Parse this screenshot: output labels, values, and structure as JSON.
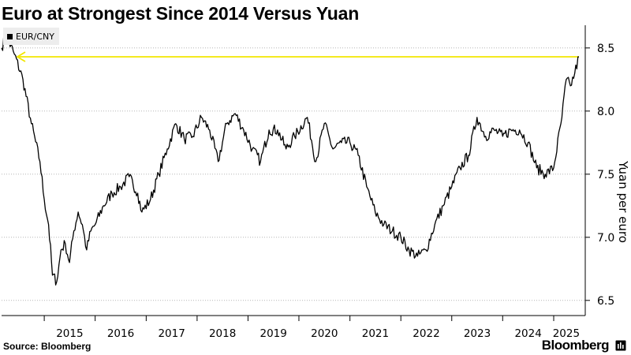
{
  "title": "Euro at Strongest Since 2014 Versus Yuan",
  "legend": {
    "label": "EUR/CNY",
    "color": "#000000"
  },
  "source": "Source: Bloomberg",
  "brand": "Bloomberg",
  "colors": {
    "line": "#000000",
    "reference": "#f2e600",
    "grid": "#b5b5b5"
  },
  "chart_data": {
    "type": "line",
    "title": "Euro at Strongest Since 2014 Versus Yuan",
    "xlabel": "",
    "ylabel": "Yuan per euro",
    "ylim": [
      6.38,
      8.68
    ],
    "yaxis_side": "right",
    "yticks": [
      6.5,
      7.0,
      7.5,
      8.0,
      8.5
    ],
    "ytick_labels": [
      "6.5",
      "7.0",
      "7.5",
      "8.0",
      "8.5"
    ],
    "xticks": [
      "2015",
      "2016",
      "2017",
      "2018",
      "2019",
      "2020",
      "2021",
      "2022",
      "2023",
      "2024",
      "2025"
    ],
    "grid": "horizontal dotted",
    "legend_position": "top-left",
    "reference_line": {
      "value": 8.43,
      "style": "arrow pointing left",
      "color": "#f2e600"
    },
    "series": [
      {
        "name": "EUR/CNY",
        "points": [
          [
            "2014-03-01",
            8.5
          ],
          [
            "2014-04-01",
            8.6
          ],
          [
            "2014-06-01",
            8.45
          ],
          [
            "2014-08-01",
            8.25
          ],
          [
            "2014-10-01",
            7.9
          ],
          [
            "2014-12-01",
            7.6
          ],
          [
            "2015-01-01",
            7.3
          ],
          [
            "2015-02-01",
            7.1
          ],
          [
            "2015-03-01",
            6.7
          ],
          [
            "2015-04-01",
            6.65
          ],
          [
            "2015-05-01",
            6.9
          ],
          [
            "2015-06-01",
            6.95
          ],
          [
            "2015-07-01",
            6.8
          ],
          [
            "2015-08-01",
            7.05
          ],
          [
            "2015-09-01",
            7.2
          ],
          [
            "2015-10-01",
            7.1
          ],
          [
            "2015-11-01",
            6.9
          ],
          [
            "2015-12-01",
            7.05
          ],
          [
            "2016-01-01",
            7.1
          ],
          [
            "2016-03-01",
            7.25
          ],
          [
            "2016-05-01",
            7.35
          ],
          [
            "2016-07-01",
            7.4
          ],
          [
            "2016-09-01",
            7.48
          ],
          [
            "2016-11-01",
            7.35
          ],
          [
            "2016-12-01",
            7.2
          ],
          [
            "2017-02-01",
            7.3
          ],
          [
            "2017-04-01",
            7.5
          ],
          [
            "2017-06-01",
            7.7
          ],
          [
            "2017-08-01",
            7.9
          ],
          [
            "2017-10-01",
            7.78
          ],
          [
            "2017-12-01",
            7.8
          ],
          [
            "2018-02-01",
            7.95
          ],
          [
            "2018-04-01",
            7.85
          ],
          [
            "2018-06-01",
            7.6
          ],
          [
            "2018-08-01",
            7.9
          ],
          [
            "2018-10-01",
            7.98
          ],
          [
            "2018-12-01",
            7.85
          ],
          [
            "2019-02-01",
            7.7
          ],
          [
            "2019-04-01",
            7.6
          ],
          [
            "2019-06-01",
            7.85
          ],
          [
            "2019-08-01",
            7.85
          ],
          [
            "2019-10-01",
            7.7
          ],
          [
            "2019-12-01",
            7.8
          ],
          [
            "2020-03-01",
            7.95
          ],
          [
            "2020-05-01",
            7.6
          ],
          [
            "2020-07-01",
            7.9
          ],
          [
            "2020-09-01",
            7.7
          ],
          [
            "2020-11-01",
            7.75
          ],
          [
            "2021-01-01",
            7.75
          ],
          [
            "2021-03-01",
            7.65
          ],
          [
            "2021-05-01",
            7.4
          ],
          [
            "2021-07-01",
            7.2
          ],
          [
            "2021-09-01",
            7.1
          ],
          [
            "2021-11-01",
            7.05
          ],
          [
            "2022-01-01",
            7.0
          ],
          [
            "2022-03-01",
            6.9
          ],
          [
            "2022-05-01",
            6.85
          ],
          [
            "2022-07-01",
            6.9
          ],
          [
            "2022-09-01",
            7.1
          ],
          [
            "2022-11-01",
            7.25
          ],
          [
            "2023-01-01",
            7.4
          ],
          [
            "2023-03-01",
            7.55
          ],
          [
            "2023-05-01",
            7.65
          ],
          [
            "2023-07-01",
            7.95
          ],
          [
            "2023-09-01",
            7.8
          ],
          [
            "2023-11-01",
            7.85
          ],
          [
            "2024-01-01",
            7.8
          ],
          [
            "2024-03-01",
            7.85
          ],
          [
            "2024-05-01",
            7.85
          ],
          [
            "2024-07-01",
            7.75
          ],
          [
            "2024-09-01",
            7.55
          ],
          [
            "2024-11-01",
            7.5
          ],
          [
            "2025-01-01",
            7.55
          ],
          [
            "2025-03-01",
            7.95
          ],
          [
            "2025-04-01",
            8.25
          ],
          [
            "2025-05-01",
            8.2
          ],
          [
            "2025-06-01",
            8.3
          ],
          [
            "2025-07-01",
            8.43
          ]
        ]
      }
    ]
  }
}
